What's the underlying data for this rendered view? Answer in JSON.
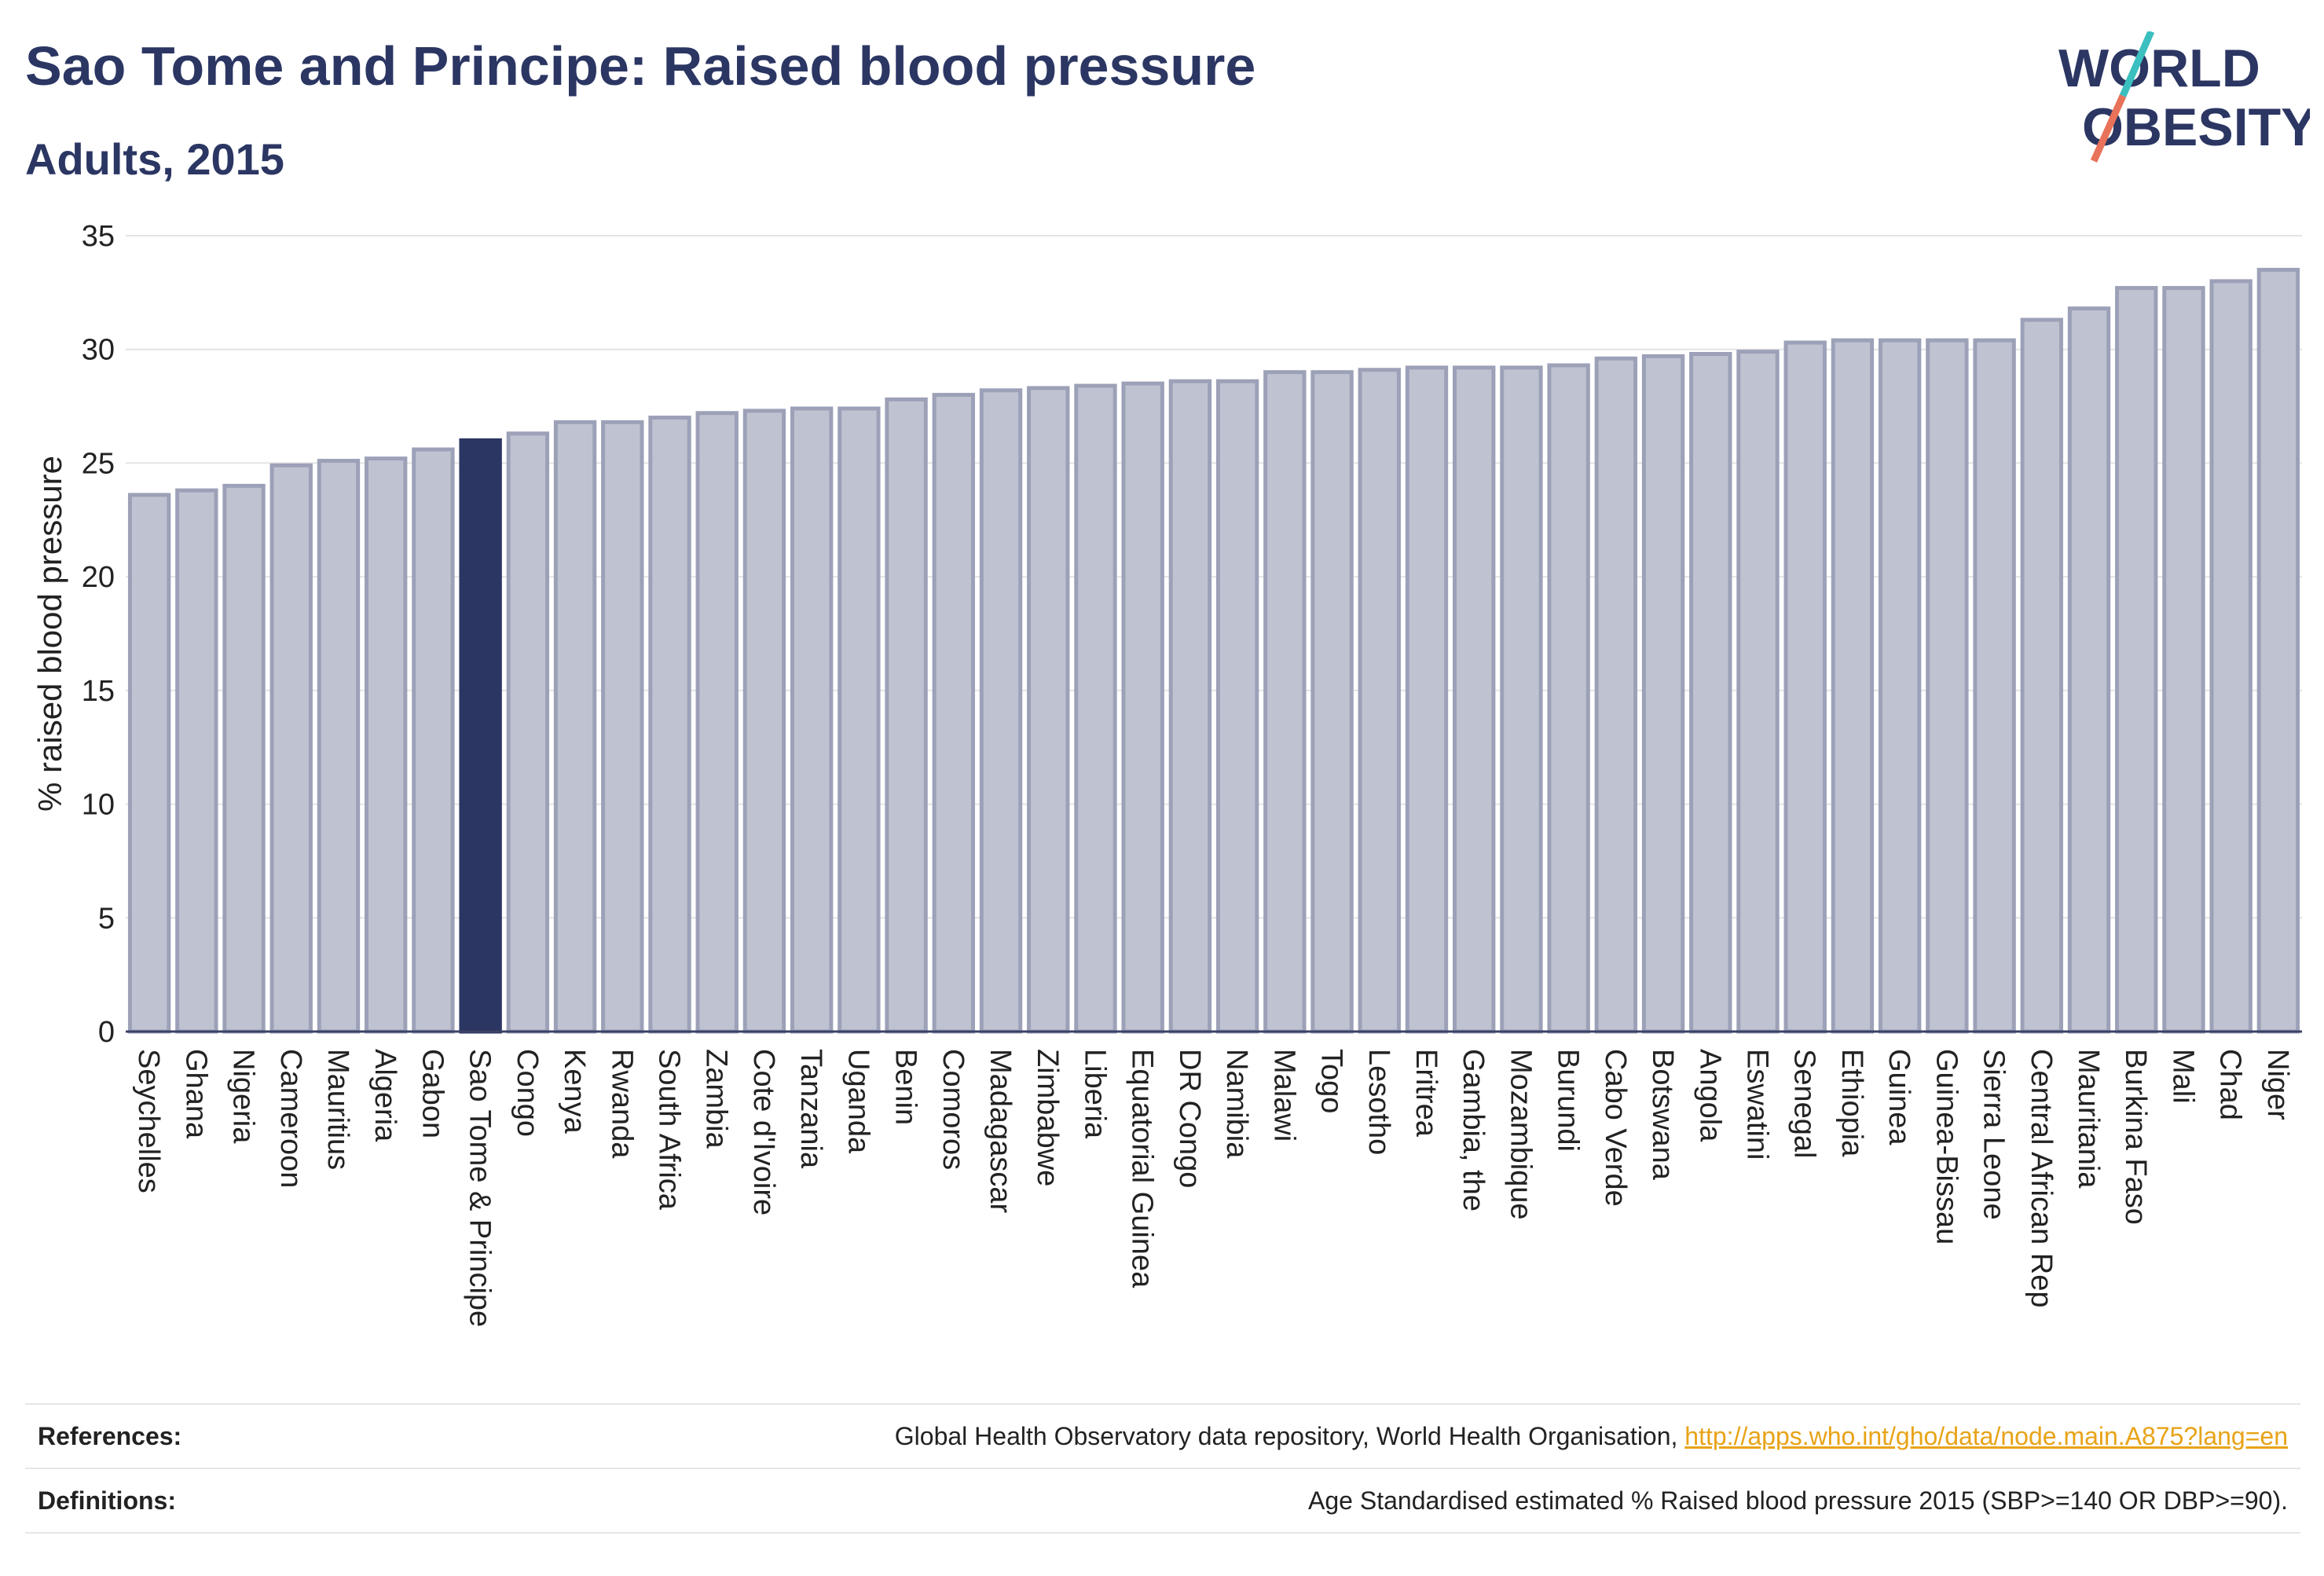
{
  "header": {
    "title": "Sao Tome and Principe: Raised blood pressure",
    "subtitle": "Adults, 2015"
  },
  "logo": {
    "line1": "WORLD",
    "line2": "OBESITY"
  },
  "colors": {
    "title": "#2b3663",
    "bar_default": "#bfc3d1",
    "bar_default_edge": "#9ca1b8",
    "bar_highlight": "#2b3663",
    "logo_teal": "#3bbfbf",
    "logo_coral": "#e8735a",
    "link": "#e8a317"
  },
  "chart_data": {
    "type": "bar",
    "ylabel": "% raised blood pressure",
    "ylim": [
      0,
      35
    ],
    "yticks": [
      0,
      5,
      10,
      15,
      20,
      25,
      30,
      35
    ],
    "highlight": "Sao Tome & Principe",
    "grid": true,
    "categories": [
      "Seychelles",
      "Ghana",
      "Nigeria",
      "Cameroon",
      "Mauritius",
      "Algeria",
      "Gabon",
      "Sao Tome & Principe",
      "Congo",
      "Kenya",
      "Rwanda",
      "South Africa",
      "Zambia",
      "Cote d'Ivoire",
      "Tanzania",
      "Uganda",
      "Benin",
      "Comoros",
      "Madagascar",
      "Zimbabwe",
      "Liberia",
      "Equatorial Guinea",
      "DR Congo",
      "Namibia",
      "Malawi",
      "Togo",
      "Lesotho",
      "Eritrea",
      "Gambia, the",
      "Mozambique",
      "Burundi",
      "Cabo Verde",
      "Botswana",
      "Angola",
      "Eswatini",
      "Senegal",
      "Ethiopia",
      "Guinea",
      "Guinea-Bissau",
      "Sierra Leone",
      "Central African Rep",
      "Mauritania",
      "Burkina Faso",
      "Mali",
      "Chad",
      "Niger"
    ],
    "values": [
      23.6,
      23.8,
      24.0,
      24.9,
      25.1,
      25.2,
      25.6,
      26.0,
      26.3,
      26.8,
      26.8,
      27.0,
      27.2,
      27.3,
      27.4,
      27.4,
      27.8,
      28.0,
      28.2,
      28.3,
      28.4,
      28.5,
      28.6,
      28.6,
      29.0,
      29.0,
      29.1,
      29.2,
      29.2,
      29.2,
      29.3,
      29.6,
      29.7,
      29.8,
      29.9,
      30.3,
      30.4,
      30.4,
      30.4,
      30.4,
      31.3,
      31.8,
      32.7,
      32.7,
      33.0,
      33.5
    ]
  },
  "footer": {
    "references_label": "References:",
    "references_text": "Global Health Observatory data repository, World Health Organisation, ",
    "references_link": "http://apps.who.int/gho/data/node.main.A875?lang=en",
    "definitions_label": "Definitions:",
    "definitions_text": "Age Standardised estimated % Raised blood pressure 2015 (SBP>=140 OR DBP>=90)."
  }
}
